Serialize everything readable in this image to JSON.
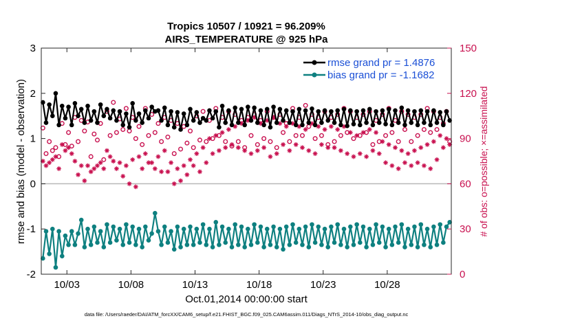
{
  "chart_data": {
    "type": "line",
    "title_line1": "Tropics 10507 / 10921 = 96.209%",
    "title_line2": "AIRS_TEMPERATURE @ 925 hPa",
    "ylabel": "rmse and bias (model - observation)",
    "ylabel_right": "# of obs: o=possible; ×=assimilated",
    "xlabel": "Oct.01,2014 00:00:00 start",
    "footer": "data file: /Users/raeder/DAI/ATM_forcXX/CAM6_setup/f.e21.FHIST_BGC.f09_025.CAM6assim.011/Diags_NTrS_2014-10/obs_diag_output.nc",
    "xlim": [
      1.0,
      33.0
    ],
    "ylim": [
      -2,
      3
    ],
    "ylim_right": [
      0,
      150
    ],
    "x_ticks": [
      {
        "value": 3,
        "label": "10/03"
      },
      {
        "value": 8,
        "label": "10/08"
      },
      {
        "value": 13,
        "label": "10/13"
      },
      {
        "value": 18,
        "label": "10/18"
      },
      {
        "value": 23,
        "label": "10/23"
      },
      {
        "value": 28,
        "label": "10/28"
      }
    ],
    "y_ticks": [
      {
        "value": -2,
        "label": "-2"
      },
      {
        "value": -1,
        "label": "-1"
      },
      {
        "value": 0,
        "label": "0"
      },
      {
        "value": 1,
        "label": "1"
      },
      {
        "value": 2,
        "label": "2"
      },
      {
        "value": 3,
        "label": "3"
      }
    ],
    "y_ticks_right": [
      {
        "value": 0,
        "label": "0"
      },
      {
        "value": 30,
        "label": "30"
      },
      {
        "value": 60,
        "label": "60"
      },
      {
        "value": 90,
        "label": "90"
      },
      {
        "value": 120,
        "label": "120"
      },
      {
        "value": 150,
        "label": "150"
      }
    ],
    "x_start": 1.125,
    "x_step": 0.25,
    "legend": [
      {
        "label": "rmse grand pr = 1.4876",
        "color": "#000000"
      },
      {
        "label": "bias grand pr = -1.1682",
        "color": "#0e8080"
      }
    ],
    "colors": {
      "rmse": "#000000",
      "bias": "#0e8080",
      "obs": "#c8104f",
      "zero_line": "#b8b8b8"
    },
    "series": [
      {
        "name": "rmse",
        "values": [
          1.8,
          1.35,
          1.75,
          1.5,
          2.0,
          1.3,
          1.72,
          1.45,
          1.7,
          1.3,
          1.78,
          1.5,
          1.65,
          1.35,
          1.72,
          1.4,
          1.6,
          1.35,
          1.75,
          1.5,
          1.65,
          1.45,
          1.62,
          1.4,
          1.6,
          1.3,
          1.55,
          1.25,
          1.78,
          1.4,
          1.55,
          1.35,
          1.62,
          1.45,
          1.7,
          1.6,
          1.62,
          1.4,
          1.68,
          1.3,
          1.6,
          1.25,
          1.58,
          1.2,
          1.55,
          1.3,
          1.65,
          1.4,
          1.58,
          1.35,
          1.45,
          1.4,
          1.62,
          1.45,
          1.6,
          1.25,
          1.72,
          1.35,
          1.62,
          1.3,
          1.68,
          1.35,
          1.65,
          1.3,
          1.7,
          1.4,
          1.68,
          1.35,
          1.62,
          1.3,
          1.65,
          1.25,
          1.7,
          1.35,
          1.65,
          1.4,
          1.62,
          1.35,
          1.6,
          1.3,
          1.65,
          1.3,
          1.62,
          1.35,
          1.66,
          1.3,
          1.6,
          1.35,
          1.62,
          1.4,
          1.6,
          1.35,
          1.62,
          1.3,
          1.65,
          1.28,
          1.62,
          1.32,
          1.6,
          1.3,
          1.62,
          1.35,
          1.65,
          1.3,
          1.6,
          1.35,
          1.62,
          1.32,
          1.65,
          1.3,
          1.62,
          1.35,
          1.68,
          1.3,
          1.62,
          1.35,
          1.6,
          1.3,
          1.62,
          1.35,
          1.6,
          1.3,
          1.62,
          1.35,
          1.58,
          1.3,
          1.6,
          1.4
        ]
      },
      {
        "name": "bias",
        "values": [
          -1.65,
          -1.05,
          -1.55,
          -1.0,
          -1.85,
          -1.05,
          -1.6,
          -1.15,
          -1.35,
          -1.05,
          -1.35,
          -1.1,
          -0.8,
          -1.4,
          -1.0,
          -1.35,
          -0.95,
          -1.3,
          -1.05,
          -1.4,
          -0.9,
          -1.3,
          -0.95,
          -1.25,
          -1.0,
          -1.35,
          -0.9,
          -1.3,
          -0.95,
          -1.35,
          -1.0,
          -1.4,
          -0.95,
          -1.25,
          -1.1,
          -0.65,
          -1.05,
          -1.35,
          -0.95,
          -1.3,
          -1.05,
          -1.45,
          -0.95,
          -1.4,
          -1.0,
          -1.35,
          -0.95,
          -1.35,
          -1.0,
          -1.3,
          -0.9,
          -1.35,
          -1.0,
          -1.4,
          -0.85,
          -1.35,
          -0.95,
          -1.3,
          -1.0,
          -1.4,
          -0.9,
          -1.35,
          -0.95,
          -1.4,
          -1.0,
          -1.35,
          -0.9,
          -1.3,
          -0.95,
          -1.4,
          -1.0,
          -1.35,
          -0.95,
          -1.4,
          -1.0,
          -1.45,
          -0.95,
          -1.35,
          -0.9,
          -1.3,
          -1.0,
          -1.35,
          -0.95,
          -1.4,
          -0.9,
          -1.3,
          -0.95,
          -1.35,
          -1.0,
          -1.4,
          -0.95,
          -1.3,
          -0.9,
          -1.35,
          -1.0,
          -1.4,
          -0.95,
          -1.35,
          -0.9,
          -1.3,
          -0.95,
          -1.4,
          -1.0,
          -1.35,
          -0.9,
          -1.3,
          -0.95,
          -1.4,
          -1.0,
          -1.35,
          -0.95,
          -1.3,
          -0.9,
          -1.4,
          -1.0,
          -1.35,
          -0.95,
          -1.4,
          -0.9,
          -1.35,
          -1.0,
          -1.4,
          -0.95,
          -1.35,
          -0.9,
          -1.3,
          -0.95,
          -0.85
        ]
      },
      {
        "name": "obs_possible",
        "values": [
          97,
          80,
          88,
          82,
          84,
          78,
          100,
          86,
          94,
          85,
          104,
          88,
          102,
          95,
          101,
          78,
          93,
          89,
          100,
          76,
          108,
          92,
          114,
          94,
          103,
          96,
          110,
          95,
          104,
          90,
          98,
          86,
          110,
          92,
          106,
          94,
          100,
          88,
          104,
          91,
          102,
          80,
          100,
          83,
          98,
          87,
          95,
          84,
          105,
          89,
          108,
          88,
          102,
          90,
          110,
          92,
          104,
          88,
          108,
          85,
          106,
          88,
          102,
          84,
          104,
          92,
          106,
          86,
          102,
          90,
          108,
          88,
          104,
          84,
          106,
          94,
          100,
          88,
          110,
          92,
          104,
          92,
          112,
          98,
          106,
          90,
          104,
          92,
          108,
          86,
          104,
          88,
          106,
          92,
          110,
          94,
          108,
          90,
          104,
          92,
          106,
          94,
          108,
          86,
          102,
          88,
          106,
          92,
          110,
          94,
          102,
          88,
          108,
          96,
          106,
          88,
          104,
          92,
          106,
          96,
          110,
          94,
          108,
          96,
          104,
          100,
          108,
          88
        ]
      },
      {
        "name": "obs_assimilated",
        "values": [
          75,
          72,
          74,
          76,
          78,
          70,
          86,
          82,
          84,
          80,
          75,
          66,
          72,
          62,
          72,
          68,
          70,
          72,
          74,
          70,
          82,
          78,
          75,
          70,
          74,
          65,
          72,
          60,
          76,
          58,
          78,
          70,
          80,
          74,
          74,
          70,
          78,
          68,
          82,
          68,
          74,
          60,
          70,
          62,
          72,
          66,
          76,
          72,
          80,
          68,
          84,
          74,
          90,
          80,
          92,
          82,
          94,
          84,
          96,
          86,
          98,
          84,
          100,
          82,
          102,
          80,
          104,
          82,
          100,
          84,
          102,
          78,
          104,
          80,
          100,
          86,
          98,
          82,
          100,
          86,
          98,
          84,
          96,
          82,
          100,
          80,
          98,
          86,
          96,
          84,
          98,
          84,
          96,
          82,
          98,
          80,
          94,
          78,
          92,
          80,
          94,
          78,
          96,
          82,
          94,
          80,
          88,
          74,
          86,
          72,
          84,
          70,
          82,
          74,
          80,
          72,
          82,
          74,
          84,
          72,
          86,
          70,
          88,
          76,
          92,
          84,
          90,
          86
        ]
      }
    ]
  }
}
